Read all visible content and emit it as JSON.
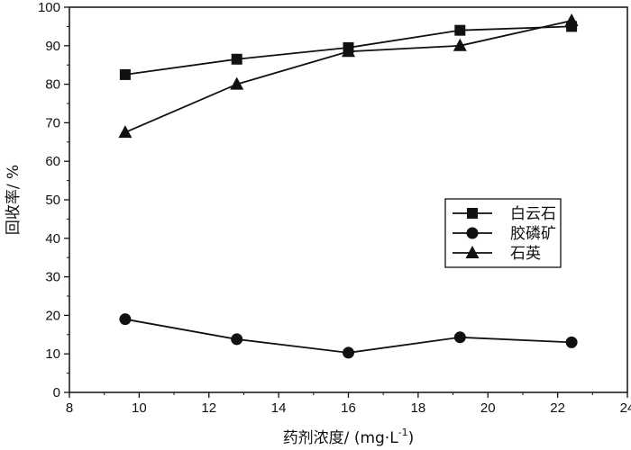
{
  "chart_data": {
    "type": "line",
    "title": "",
    "xlabel": "药剂浓度/ (mg·L",
    "xlabel_superscript": "-1",
    "xlabel_close": ")",
    "ylabel": "回收率/ %",
    "xlim": [
      8,
      24
    ],
    "ylim": [
      0,
      100
    ],
    "xticks": [
      8,
      10,
      12,
      14,
      16,
      18,
      20,
      22,
      24
    ],
    "yticks": [
      0,
      10,
      20,
      30,
      40,
      50,
      60,
      70,
      80,
      90,
      100
    ],
    "grid": false,
    "legend_position": "right",
    "series": [
      {
        "name": "白云石",
        "marker": "square",
        "x": [
          9.6,
          12.8,
          16.0,
          19.2,
          22.4
        ],
        "y": [
          82.5,
          86.5,
          89.5,
          94.0,
          95.0
        ]
      },
      {
        "name": "胶磷矿",
        "marker": "circle",
        "x": [
          9.6,
          12.8,
          16.0,
          19.2,
          22.4
        ],
        "y": [
          19.0,
          13.8,
          10.3,
          14.3,
          13.0
        ]
      },
      {
        "name": "石英",
        "marker": "triangle",
        "x": [
          9.6,
          12.8,
          16.0,
          19.2,
          22.4
        ],
        "y": [
          67.5,
          80.0,
          88.5,
          90.0,
          96.5
        ]
      }
    ]
  }
}
